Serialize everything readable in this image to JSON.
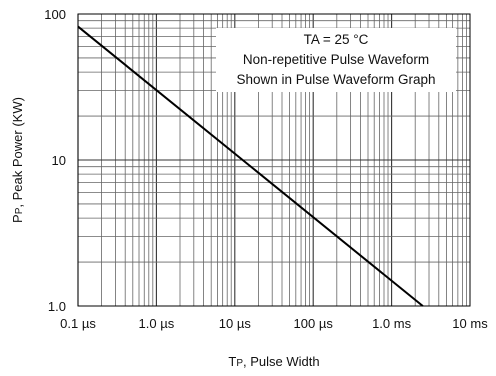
{
  "chart_data": {
    "type": "line",
    "title": "",
    "xlabel": {
      "main": "T",
      "sub": "P",
      "rest": ", Pulse Width"
    },
    "ylabel": {
      "main": "P",
      "sub": "P",
      "rest": ", Peak Power (KW)"
    },
    "x_scale": "log",
    "y_scale": "log",
    "xlim_seconds": [
      1e-07,
      0.01
    ],
    "ylim_kw": [
      1,
      100
    ],
    "x_ticks": [
      {
        "value": 1e-07,
        "label": "0.1 µs"
      },
      {
        "value": 1e-06,
        "label": "1.0 µs"
      },
      {
        "value": 1e-05,
        "label": "10 µs"
      },
      {
        "value": 0.0001,
        "label": "100 µs"
      },
      {
        "value": 0.001,
        "label": "1.0 ms"
      },
      {
        "value": 0.01,
        "label": "10 ms"
      }
    ],
    "y_ticks": [
      {
        "value": 1,
        "label": "1.0"
      },
      {
        "value": 10,
        "label": "10"
      },
      {
        "value": 100,
        "label": "100"
      }
    ],
    "grid": true,
    "annotation": [
      "TA = 25 °C",
      "Non-repetitive Pulse Waveform",
      "Shown in Pulse Waveform Graph"
    ],
    "series": [
      {
        "points": [
          {
            "x": 1e-07,
            "y": 82
          },
          {
            "x": 0.0025,
            "y": 1.0
          }
        ]
      }
    ],
    "colors": {
      "line": "#000000",
      "grid": "#666666",
      "frame": "#000000"
    }
  }
}
